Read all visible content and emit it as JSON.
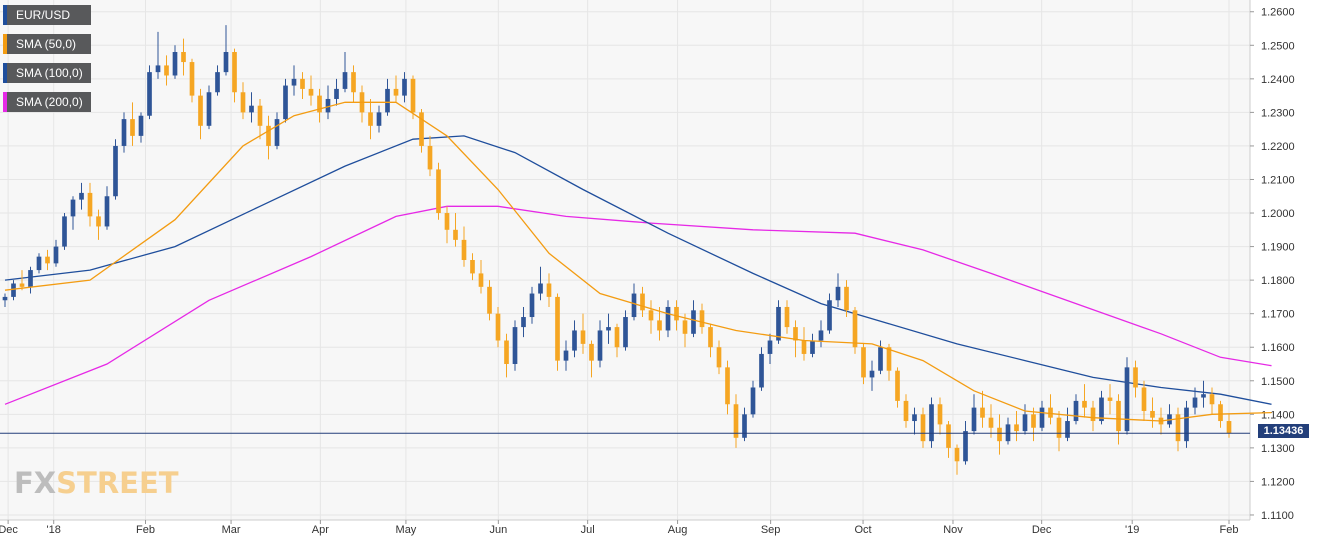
{
  "colors": {
    "bull": "#2f5597",
    "bear": "#f5a623",
    "sma50": "#f39c12",
    "sma100": "#1f4e9c",
    "sma200": "#e629e6",
    "price_line": "#233f7a",
    "grid": "#e6e6e6",
    "plot_bg": "#f7f7f7"
  },
  "legend": [
    {
      "label": "EUR/USD",
      "color": "#1f4e9c"
    },
    {
      "label": "SMA (50,0)",
      "color": "#f39c12"
    },
    {
      "label": "SMA (100,0)",
      "color": "#1f4e9c"
    },
    {
      "label": "SMA (200,0)",
      "color": "#e629e6"
    }
  ],
  "price_badge": "1.13436",
  "logo": {
    "part1": "FX",
    "part2": "STREET"
  },
  "chart_data": {
    "type": "candlestick",
    "symbol": "EUR/USD",
    "y_ticks": [
      "1.2600",
      "1.2500",
      "1.2400",
      "1.2300",
      "1.2200",
      "1.2100",
      "1.2000",
      "1.1900",
      "1.1800",
      "1.1700",
      "1.1600",
      "1.1500",
      "1.1400",
      "1.1300",
      "1.1200",
      "1.1100"
    ],
    "ylim": [
      1.1085,
      1.2635
    ],
    "x_ticks": [
      "Dec",
      "'18",
      "Feb",
      "Mar",
      "Apr",
      "May",
      "Jun",
      "Jul",
      "Aug",
      "Sep",
      "Oct",
      "Nov",
      "Dec",
      "'19",
      "Feb"
    ],
    "last_price": 1.13436,
    "candles": [
      [
        1.174,
        1.176,
        1.172,
        1.175
      ],
      [
        1.175,
        1.18,
        1.174,
        1.179
      ],
      [
        1.179,
        1.183,
        1.177,
        1.178
      ],
      [
        1.178,
        1.184,
        1.176,
        1.183
      ],
      [
        1.183,
        1.188,
        1.182,
        1.187
      ],
      [
        1.187,
        1.189,
        1.183,
        1.185
      ],
      [
        1.185,
        1.192,
        1.184,
        1.19
      ],
      [
        1.19,
        1.2,
        1.189,
        1.199
      ],
      [
        1.199,
        1.205,
        1.195,
        1.204
      ],
      [
        1.204,
        1.209,
        1.201,
        1.206
      ],
      [
        1.206,
        1.209,
        1.196,
        1.199
      ],
      [
        1.199,
        1.201,
        1.192,
        1.196
      ],
      [
        1.196,
        1.208,
        1.195,
        1.205
      ],
      [
        1.205,
        1.222,
        1.204,
        1.22
      ],
      [
        1.22,
        1.23,
        1.218,
        1.228
      ],
      [
        1.228,
        1.233,
        1.22,
        1.223
      ],
      [
        1.223,
        1.23,
        1.221,
        1.229
      ],
      [
        1.229,
        1.244,
        1.228,
        1.242
      ],
      [
        1.242,
        1.254,
        1.24,
        1.244
      ],
      [
        1.244,
        1.247,
        1.238,
        1.241
      ],
      [
        1.241,
        1.25,
        1.24,
        1.248
      ],
      [
        1.248,
        1.252,
        1.241,
        1.245
      ],
      [
        1.245,
        1.246,
        1.233,
        1.235
      ],
      [
        1.235,
        1.237,
        1.222,
        1.226
      ],
      [
        1.226,
        1.238,
        1.225,
        1.236
      ],
      [
        1.236,
        1.244,
        1.235,
        1.242
      ],
      [
        1.242,
        1.256,
        1.241,
        1.248
      ],
      [
        1.248,
        1.249,
        1.233,
        1.236
      ],
      [
        1.236,
        1.239,
        1.228,
        1.23
      ],
      [
        1.23,
        1.236,
        1.227,
        1.232
      ],
      [
        1.232,
        1.234,
        1.222,
        1.226
      ],
      [
        1.226,
        1.229,
        1.216,
        1.22
      ],
      [
        1.22,
        1.23,
        1.219,
        1.228
      ],
      [
        1.228,
        1.24,
        1.227,
        1.238
      ],
      [
        1.238,
        1.244,
        1.235,
        1.24
      ],
      [
        1.24,
        1.242,
        1.234,
        1.237
      ],
      [
        1.237,
        1.241,
        1.232,
        1.235
      ],
      [
        1.235,
        1.237,
        1.227,
        1.23
      ],
      [
        1.23,
        1.238,
        1.228,
        1.234
      ],
      [
        1.234,
        1.24,
        1.232,
        1.237
      ],
      [
        1.237,
        1.248,
        1.236,
        1.242
      ],
      [
        1.242,
        1.244,
        1.233,
        1.236
      ],
      [
        1.236,
        1.238,
        1.227,
        1.23
      ],
      [
        1.23,
        1.234,
        1.222,
        1.226
      ],
      [
        1.226,
        1.232,
        1.224,
        1.23
      ],
      [
        1.23,
        1.24,
        1.229,
        1.237
      ],
      [
        1.237,
        1.241,
        1.233,
        1.235
      ],
      [
        1.235,
        1.242,
        1.233,
        1.24
      ],
      [
        1.24,
        1.241,
        1.228,
        1.23
      ],
      [
        1.23,
        1.231,
        1.218,
        1.22
      ],
      [
        1.22,
        1.223,
        1.211,
        1.213
      ],
      [
        1.213,
        1.215,
        1.198,
        1.2
      ],
      [
        1.2,
        1.202,
        1.191,
        1.195
      ],
      [
        1.195,
        1.2,
        1.19,
        1.192
      ],
      [
        1.192,
        1.196,
        1.184,
        1.186
      ],
      [
        1.186,
        1.188,
        1.18,
        1.182
      ],
      [
        1.182,
        1.186,
        1.176,
        1.178
      ],
      [
        1.178,
        1.18,
        1.168,
        1.17
      ],
      [
        1.17,
        1.172,
        1.16,
        1.162
      ],
      [
        1.162,
        1.164,
        1.151,
        1.155
      ],
      [
        1.155,
        1.168,
        1.153,
        1.166
      ],
      [
        1.166,
        1.172,
        1.163,
        1.169
      ],
      [
        1.169,
        1.178,
        1.167,
        1.176
      ],
      [
        1.176,
        1.184,
        1.174,
        1.179
      ],
      [
        1.179,
        1.182,
        1.172,
        1.175
      ],
      [
        1.175,
        1.176,
        1.153,
        1.156
      ],
      [
        1.156,
        1.162,
        1.153,
        1.159
      ],
      [
        1.159,
        1.168,
        1.157,
        1.165
      ],
      [
        1.165,
        1.17,
        1.158,
        1.161
      ],
      [
        1.161,
        1.162,
        1.151,
        1.156
      ],
      [
        1.156,
        1.168,
        1.154,
        1.165
      ],
      [
        1.165,
        1.17,
        1.161,
        1.166
      ],
      [
        1.166,
        1.167,
        1.157,
        1.16
      ],
      [
        1.16,
        1.171,
        1.159,
        1.169
      ],
      [
        1.169,
        1.179,
        1.168,
        1.176
      ],
      [
        1.176,
        1.178,
        1.169,
        1.171
      ],
      [
        1.171,
        1.174,
        1.164,
        1.168
      ],
      [
        1.168,
        1.172,
        1.162,
        1.165
      ],
      [
        1.165,
        1.174,
        1.163,
        1.172
      ],
      [
        1.172,
        1.174,
        1.165,
        1.168
      ],
      [
        1.168,
        1.17,
        1.16,
        1.164
      ],
      [
        1.164,
        1.174,
        1.163,
        1.171
      ],
      [
        1.171,
        1.173,
        1.164,
        1.166
      ],
      [
        1.166,
        1.167,
        1.157,
        1.16
      ],
      [
        1.16,
        1.162,
        1.152,
        1.154
      ],
      [
        1.154,
        1.156,
        1.14,
        1.143
      ],
      [
        1.143,
        1.146,
        1.13,
        1.133
      ],
      [
        1.133,
        1.142,
        1.132,
        1.14
      ],
      [
        1.14,
        1.15,
        1.139,
        1.148
      ],
      [
        1.148,
        1.16,
        1.147,
        1.158
      ],
      [
        1.158,
        1.164,
        1.155,
        1.162
      ],
      [
        1.162,
        1.174,
        1.161,
        1.172
      ],
      [
        1.172,
        1.174,
        1.164,
        1.166
      ],
      [
        1.166,
        1.168,
        1.157,
        1.162
      ],
      [
        1.162,
        1.166,
        1.156,
        1.158
      ],
      [
        1.158,
        1.164,
        1.157,
        1.162
      ],
      [
        1.162,
        1.168,
        1.16,
        1.165
      ],
      [
        1.165,
        1.176,
        1.164,
        1.174
      ],
      [
        1.174,
        1.182,
        1.172,
        1.178
      ],
      [
        1.178,
        1.18,
        1.169,
        1.171
      ],
      [
        1.171,
        1.172,
        1.158,
        1.16
      ],
      [
        1.16,
        1.161,
        1.149,
        1.151
      ],
      [
        1.151,
        1.156,
        1.147,
        1.153
      ],
      [
        1.153,
        1.162,
        1.152,
        1.16
      ],
      [
        1.16,
        1.161,
        1.15,
        1.153
      ],
      [
        1.153,
        1.154,
        1.142,
        1.144
      ],
      [
        1.144,
        1.146,
        1.136,
        1.138
      ],
      [
        1.138,
        1.142,
        1.134,
        1.14
      ],
      [
        1.14,
        1.142,
        1.13,
        1.132
      ],
      [
        1.132,
        1.145,
        1.13,
        1.143
      ],
      [
        1.143,
        1.145,
        1.134,
        1.137
      ],
      [
        1.137,
        1.138,
        1.127,
        1.13
      ],
      [
        1.13,
        1.131,
        1.122,
        1.126
      ],
      [
        1.126,
        1.138,
        1.125,
        1.135
      ],
      [
        1.135,
        1.146,
        1.134,
        1.142
      ],
      [
        1.142,
        1.147,
        1.136,
        1.139
      ],
      [
        1.139,
        1.143,
        1.133,
        1.136
      ],
      [
        1.136,
        1.14,
        1.128,
        1.132
      ],
      [
        1.132,
        1.139,
        1.131,
        1.137
      ],
      [
        1.137,
        1.141,
        1.132,
        1.135
      ],
      [
        1.135,
        1.143,
        1.134,
        1.14
      ],
      [
        1.14,
        1.142,
        1.132,
        1.136
      ],
      [
        1.136,
        1.144,
        1.135,
        1.142
      ],
      [
        1.142,
        1.146,
        1.137,
        1.139
      ],
      [
        1.139,
        1.141,
        1.129,
        1.133
      ],
      [
        1.133,
        1.142,
        1.132,
        1.138
      ],
      [
        1.138,
        1.146,
        1.137,
        1.144
      ],
      [
        1.144,
        1.149,
        1.139,
        1.142
      ],
      [
        1.142,
        1.144,
        1.135,
        1.138
      ],
      [
        1.138,
        1.147,
        1.137,
        1.145
      ],
      [
        1.145,
        1.149,
        1.14,
        1.144
      ],
      [
        1.144,
        1.146,
        1.131,
        1.135
      ],
      [
        1.135,
        1.157,
        1.134,
        1.154
      ],
      [
        1.154,
        1.156,
        1.145,
        1.148
      ],
      [
        1.148,
        1.15,
        1.138,
        1.141
      ],
      [
        1.141,
        1.145,
        1.136,
        1.139
      ],
      [
        1.139,
        1.142,
        1.134,
        1.137
      ],
      [
        1.137,
        1.143,
        1.136,
        1.14
      ],
      [
        1.14,
        1.142,
        1.129,
        1.132
      ],
      [
        1.132,
        1.144,
        1.13,
        1.142
      ],
      [
        1.142,
        1.148,
        1.14,
        1.145
      ],
      [
        1.145,
        1.15,
        1.142,
        1.146
      ],
      [
        1.146,
        1.148,
        1.14,
        1.143
      ],
      [
        1.143,
        1.144,
        1.136,
        1.138
      ],
      [
        1.138,
        1.14,
        1.133,
        1.1343
      ]
    ],
    "sma50": [
      [
        0,
        1.177
      ],
      [
        10,
        1.18
      ],
      [
        20,
        1.198
      ],
      [
        28,
        1.22
      ],
      [
        34,
        1.229
      ],
      [
        40,
        1.233
      ],
      [
        46,
        1.233
      ],
      [
        52,
        1.223
      ],
      [
        58,
        1.207
      ],
      [
        64,
        1.188
      ],
      [
        70,
        1.176
      ],
      [
        78,
        1.17
      ],
      [
        86,
        1.165
      ],
      [
        94,
        1.162
      ],
      [
        102,
        1.161
      ],
      [
        108,
        1.156
      ],
      [
        114,
        1.147
      ],
      [
        120,
        1.141
      ],
      [
        128,
        1.139
      ],
      [
        136,
        1.138
      ],
      [
        142,
        1.14
      ],
      [
        149,
        1.1405
      ]
    ],
    "sma100": [
      [
        0,
        1.18
      ],
      [
        10,
        1.183
      ],
      [
        20,
        1.19
      ],
      [
        30,
        1.202
      ],
      [
        40,
        1.214
      ],
      [
        48,
        1.222
      ],
      [
        54,
        1.223
      ],
      [
        60,
        1.218
      ],
      [
        68,
        1.207
      ],
      [
        78,
        1.194
      ],
      [
        88,
        1.182
      ],
      [
        96,
        1.173
      ],
      [
        104,
        1.167
      ],
      [
        112,
        1.161
      ],
      [
        120,
        1.156
      ],
      [
        128,
        1.151
      ],
      [
        136,
        1.148
      ],
      [
        143,
        1.146
      ],
      [
        149,
        1.143
      ]
    ],
    "sma200": [
      [
        0,
        1.143
      ],
      [
        12,
        1.155
      ],
      [
        24,
        1.174
      ],
      [
        36,
        1.187
      ],
      [
        46,
        1.199
      ],
      [
        52,
        1.202
      ],
      [
        58,
        1.202
      ],
      [
        66,
        1.199
      ],
      [
        76,
        1.197
      ],
      [
        88,
        1.195
      ],
      [
        100,
        1.194
      ],
      [
        108,
        1.189
      ],
      [
        116,
        1.182
      ],
      [
        126,
        1.173
      ],
      [
        136,
        1.164
      ],
      [
        143,
        1.157
      ],
      [
        149,
        1.1545
      ]
    ]
  }
}
